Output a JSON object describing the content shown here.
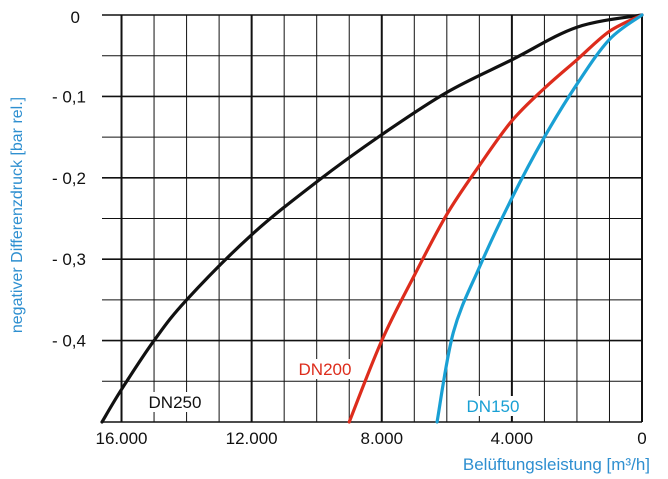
{
  "chart_data": {
    "type": "line",
    "xlabel": "Belüftungsleistung [m³/h]",
    "ylabel": "negativer Differenzdruck [bar rel.]",
    "x_reversed": true,
    "xlim": [
      16600,
      0
    ],
    "ylim": [
      0,
      -0.5
    ],
    "x_ticks": [
      {
        "value": 16000,
        "label": "16.000"
      },
      {
        "value": 12000,
        "label": "12.000"
      },
      {
        "value": 8000,
        "label": "8.000"
      },
      {
        "value": 4000,
        "label": "4.000"
      },
      {
        "value": 0,
        "label": "0"
      }
    ],
    "y_ticks": [
      {
        "value": 0,
        "label": "0"
      },
      {
        "value": -0.1,
        "label": "- 0,1"
      },
      {
        "value": -0.2,
        "label": "- 0,2"
      },
      {
        "value": -0.3,
        "label": "- 0,3"
      },
      {
        "value": -0.4,
        "label": "- 0,4"
      }
    ],
    "grid": true,
    "series": [
      {
        "name": "DN250",
        "color": "#111111",
        "label_color": "#111111",
        "points": [
          [
            0,
            0
          ],
          [
            2000,
            -0.015
          ],
          [
            4000,
            -0.055
          ],
          [
            6000,
            -0.095
          ],
          [
            8000,
            -0.147
          ],
          [
            10000,
            -0.205
          ],
          [
            12000,
            -0.27
          ],
          [
            14000,
            -0.35
          ],
          [
            15000,
            -0.4
          ],
          [
            16000,
            -0.46
          ],
          [
            16600,
            -0.5
          ]
        ]
      },
      {
        "name": "DN200",
        "color": "#dd2c1c",
        "label_color": "#dd2c1c",
        "points": [
          [
            0,
            0
          ],
          [
            1000,
            -0.02
          ],
          [
            2000,
            -0.055
          ],
          [
            3000,
            -0.09
          ],
          [
            4000,
            -0.13
          ],
          [
            5000,
            -0.185
          ],
          [
            6000,
            -0.245
          ],
          [
            7000,
            -0.32
          ],
          [
            8000,
            -0.4
          ],
          [
            9000,
            -0.5
          ]
        ]
      },
      {
        "name": "DN150",
        "color": "#19a0d4",
        "label_color": "#19a0d4",
        "points": [
          [
            0,
            0
          ],
          [
            1000,
            -0.03
          ],
          [
            2000,
            -0.085
          ],
          [
            3000,
            -0.15
          ],
          [
            4000,
            -0.225
          ],
          [
            5000,
            -0.31
          ],
          [
            5800,
            -0.39
          ],
          [
            6300,
            -0.5
          ]
        ]
      }
    ]
  }
}
